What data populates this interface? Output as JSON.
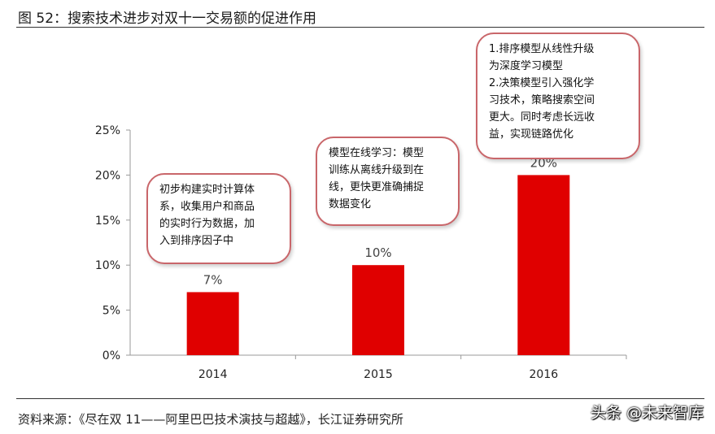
{
  "header": {
    "title": "图 52：搜索技术进步对双十一交易额的促进作用"
  },
  "footer": {
    "source": "资料来源：《尽在双 11——阿里巴巴技术演技与超越》，长江证券研究所",
    "watermark": "头条 @未来智库"
  },
  "chart_data": {
    "type": "bar",
    "categories": [
      "2014",
      "2015",
      "2016"
    ],
    "values": [
      7,
      10,
      20
    ],
    "data_labels": [
      "7%",
      "10%",
      "20%"
    ],
    "yticks": [
      "0%",
      "5%",
      "10%",
      "15%",
      "20%",
      "25%"
    ],
    "ylim": [
      0,
      25
    ],
    "grid": false,
    "bar_color": "#e00000",
    "annotations": [
      {
        "lines": [
          "初步构建实时计算体",
          "系，收集用户和商品",
          "的实时行为数据，加",
          "入到排序因子中"
        ]
      },
      {
        "lines": [
          "模型在线学习：模型",
          "训练从离线升级到在",
          "线，更快更准确捕捉",
          "数据变化"
        ]
      },
      {
        "lines": [
          "1.排序模型从线性升级",
          "为深度学习模型",
          "2.决策模型引入强化学",
          "习技术，策略搜索空间",
          "更大。同时考虑长远收",
          "益，实现链路优化"
        ]
      }
    ]
  }
}
